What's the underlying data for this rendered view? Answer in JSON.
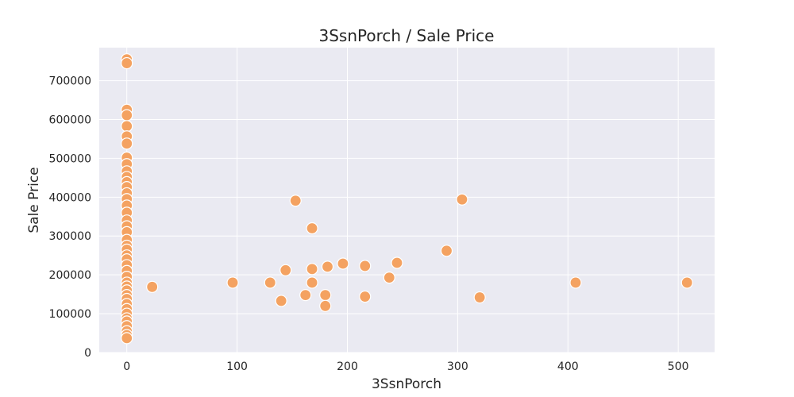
{
  "chart_data": {
    "type": "scatter",
    "title": "3SsnPorch / Sale Price",
    "xlabel": "3SsnPorch",
    "ylabel": "Sale Price",
    "xlim": [
      -25,
      533
    ],
    "ylim": [
      0,
      785000
    ],
    "xticks": [
      0,
      100,
      200,
      300,
      400,
      500
    ],
    "yticks": [
      0,
      100000,
      200000,
      300000,
      400000,
      500000,
      600000,
      700000
    ],
    "grid": true,
    "point_color": "#F4A261",
    "background_color": "#EAEAF2",
    "points": [
      {
        "x": 0,
        "y": 755000
      },
      {
        "x": 0,
        "y": 745000
      },
      {
        "x": 0,
        "y": 625000
      },
      {
        "x": 0,
        "y": 611000
      },
      {
        "x": 0,
        "y": 582933
      },
      {
        "x": 0,
        "y": 556581
      },
      {
        "x": 0,
        "y": 538000
      },
      {
        "x": 0,
        "y": 501837
      },
      {
        "x": 0,
        "y": 485000
      },
      {
        "x": 0,
        "y": 466500
      },
      {
        "x": 0,
        "y": 451950
      },
      {
        "x": 0,
        "y": 438780
      },
      {
        "x": 0,
        "y": 426000
      },
      {
        "x": 0,
        "y": 410000
      },
      {
        "x": 0,
        "y": 395000
      },
      {
        "x": 0,
        "y": 378500
      },
      {
        "x": 0,
        "y": 360000
      },
      {
        "x": 0,
        "y": 340000
      },
      {
        "x": 0,
        "y": 325000
      },
      {
        "x": 0,
        "y": 310000
      },
      {
        "x": 0,
        "y": 290000
      },
      {
        "x": 0,
        "y": 275000
      },
      {
        "x": 0,
        "y": 265000
      },
      {
        "x": 0,
        "y": 250000
      },
      {
        "x": 0,
        "y": 240000
      },
      {
        "x": 0,
        "y": 225000
      },
      {
        "x": 0,
        "y": 210000
      },
      {
        "x": 0,
        "y": 195000
      },
      {
        "x": 0,
        "y": 180000
      },
      {
        "x": 0,
        "y": 170000
      },
      {
        "x": 0,
        "y": 160000
      },
      {
        "x": 0,
        "y": 148000
      },
      {
        "x": 0,
        "y": 138000
      },
      {
        "x": 0,
        "y": 125000
      },
      {
        "x": 0,
        "y": 112000
      },
      {
        "x": 0,
        "y": 100000
      },
      {
        "x": 0,
        "y": 88000
      },
      {
        "x": 0,
        "y": 80000
      },
      {
        "x": 0,
        "y": 68000
      },
      {
        "x": 0,
        "y": 55000
      },
      {
        "x": 0,
        "y": 45000
      },
      {
        "x": 0,
        "y": 37000
      },
      {
        "x": 23,
        "y": 169000
      },
      {
        "x": 96,
        "y": 180000
      },
      {
        "x": 130,
        "y": 180000
      },
      {
        "x": 140,
        "y": 133000
      },
      {
        "x": 144,
        "y": 212000
      },
      {
        "x": 153,
        "y": 391000
      },
      {
        "x": 162,
        "y": 148000
      },
      {
        "x": 168,
        "y": 320000
      },
      {
        "x": 168,
        "y": 215000
      },
      {
        "x": 168,
        "y": 180000
      },
      {
        "x": 180,
        "y": 148000
      },
      {
        "x": 180,
        "y": 120000
      },
      {
        "x": 182,
        "y": 221000
      },
      {
        "x": 196,
        "y": 229000
      },
      {
        "x": 216,
        "y": 223000
      },
      {
        "x": 216,
        "y": 144000
      },
      {
        "x": 238,
        "y": 193000
      },
      {
        "x": 245,
        "y": 231000
      },
      {
        "x": 290,
        "y": 262000
      },
      {
        "x": 304,
        "y": 394000
      },
      {
        "x": 320,
        "y": 142000
      },
      {
        "x": 407,
        "y": 180000
      },
      {
        "x": 508,
        "y": 180000
      }
    ]
  }
}
